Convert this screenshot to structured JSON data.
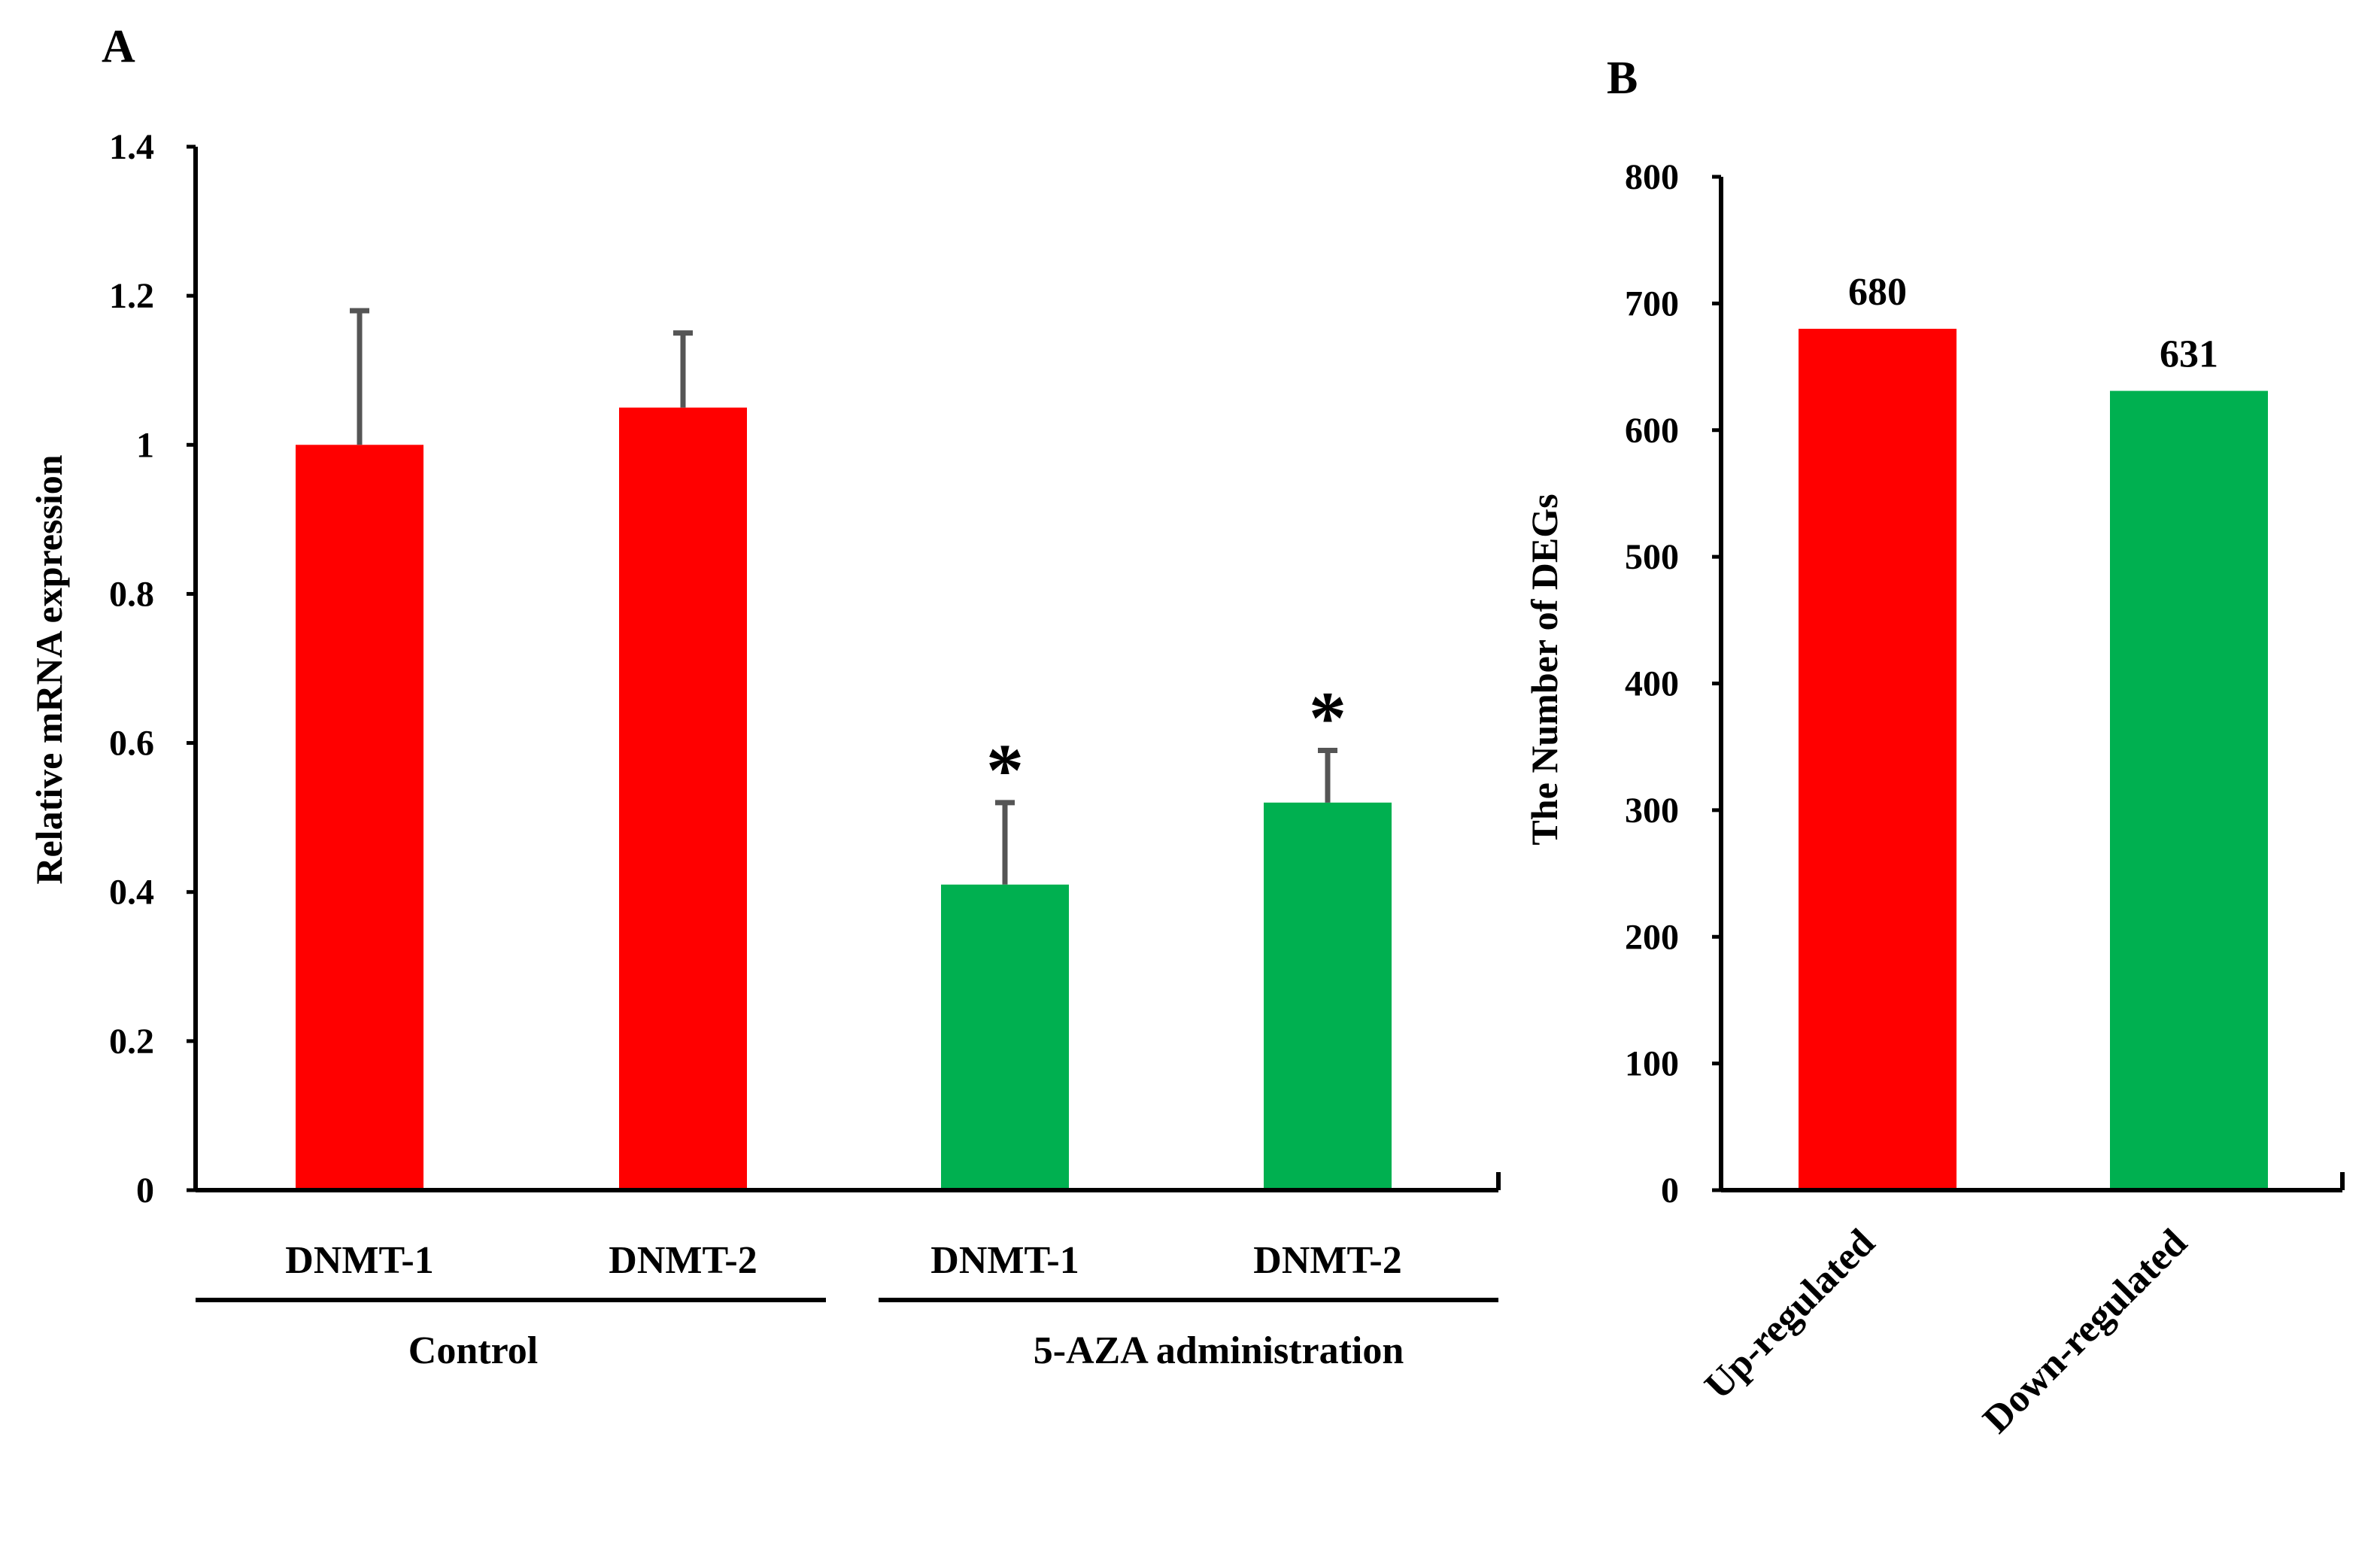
{
  "chart_data": [
    {
      "panel": "A",
      "type": "bar",
      "title": "",
      "ylabel": "Relative mRNA expression",
      "xlabel": "",
      "ylim": [
        0,
        1.4
      ],
      "yticks": [
        0,
        0.2,
        0.4,
        0.6,
        0.8,
        1,
        1.2,
        1.4
      ],
      "ytick_labels": [
        "0",
        "0.2",
        "0.4",
        "0.6",
        "0.8",
        "1",
        "1.2",
        "1.4"
      ],
      "categories": [
        "DNMT-1",
        "DNMT-2",
        "DNMT-1",
        "DNMT-2"
      ],
      "groups": [
        "Control",
        "Control",
        "5-AZA administration",
        "5-AZA administration"
      ],
      "group_labels": [
        "Control",
        "5-AZA administration"
      ],
      "values": [
        1.0,
        1.05,
        0.41,
        0.52
      ],
      "errors": [
        0.18,
        0.1,
        0.11,
        0.07
      ],
      "colors": [
        "#ff0000",
        "#ff0000",
        "#00b050",
        "#00b050"
      ],
      "significance": [
        "",
        "",
        "*",
        "*"
      ],
      "grid": false
    },
    {
      "panel": "B",
      "type": "bar",
      "title": "",
      "ylabel": "The Number of DEGs",
      "xlabel": "",
      "ylim": [
        0,
        800
      ],
      "yticks": [
        0,
        100,
        200,
        300,
        400,
        500,
        600,
        700,
        800
      ],
      "ytick_labels": [
        "0",
        "100",
        "200",
        "300",
        "400",
        "500",
        "600",
        "700",
        "800"
      ],
      "categories": [
        "Up-regulated",
        "Down-regulated"
      ],
      "values": [
        680,
        631
      ],
      "data_labels": [
        "680",
        "631"
      ],
      "colors": [
        "#ff0000",
        "#00b050"
      ],
      "grid": false
    }
  ]
}
